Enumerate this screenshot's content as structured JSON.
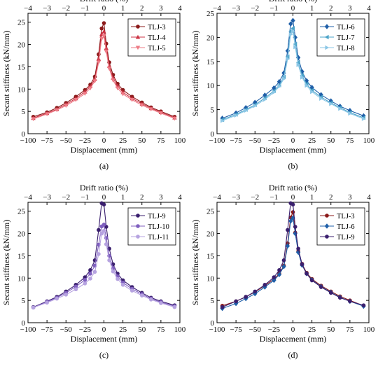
{
  "figure": {
    "panels": [
      "(a)",
      "(b)",
      "(c)",
      "(d)"
    ]
  },
  "chart_data": [
    {
      "type": "line",
      "panel_label": "(a)",
      "xlabel": "Displacement (mm)",
      "ylabel": "Secant stiffness (kN/mm)",
      "x2label": "Drift ratio (%)",
      "xlim": [
        -100,
        100
      ],
      "ylim": [
        0,
        27
      ],
      "x2lim": [
        -4,
        4
      ],
      "xticks": [
        "−100",
        "−75",
        "−50",
        "−25",
        "0",
        "25",
        "50",
        "75",
        "100"
      ],
      "yticks": [
        "0",
        "5",
        "10",
        "15",
        "20",
        "25"
      ],
      "x2ticks": [
        "−4",
        "−3",
        "−2",
        "−1",
        "0",
        "1",
        "2",
        "3",
        "4"
      ],
      "legend_position": "top-right",
      "series": [
        {
          "name": "TLJ-3",
          "color": "#8b1a1a",
          "marker": "circle",
          "x": [
            -93,
            -75,
            -62,
            -50,
            -37,
            -25,
            -18,
            -12,
            -7,
            -3,
            0,
            3,
            7,
            12,
            18,
            25,
            37,
            50,
            62,
            75,
            93
          ],
          "y": [
            3.8,
            4.8,
            5.8,
            6.9,
            8.3,
            9.8,
            11.0,
            12.8,
            17.8,
            23.6,
            24.8,
            20.2,
            16.0,
            13.2,
            11.2,
            9.8,
            8.3,
            7.0,
            5.9,
            5.0,
            3.8
          ]
        },
        {
          "name": "TLJ-4",
          "color": "#cc3344",
          "marker": "triangle-up",
          "x": [
            -93,
            -75,
            -62,
            -50,
            -37,
            -25,
            -18,
            -12,
            -7,
            -3,
            0,
            3,
            7,
            12,
            18,
            25,
            37,
            50,
            62,
            75,
            93
          ],
          "y": [
            3.5,
            4.6,
            5.5,
            6.6,
            7.9,
            9.4,
            10.6,
            12.2,
            16.8,
            22.3,
            22.9,
            19.2,
            15.2,
            12.5,
            10.7,
            9.3,
            7.9,
            6.7,
            5.7,
            4.8,
            3.6
          ]
        },
        {
          "name": "TLJ-5",
          "color": "#ee7b86",
          "marker": "triangle-down",
          "x": [
            -93,
            -75,
            -62,
            -50,
            -37,
            -25,
            -18,
            -12,
            -7,
            -3,
            0,
            3,
            7,
            12,
            18,
            25,
            37,
            50,
            62,
            75,
            93
          ],
          "y": [
            3.3,
            4.4,
            5.3,
            6.3,
            7.6,
            9.0,
            10.2,
            11.8,
            16.0,
            21.3,
            21.9,
            18.4,
            14.6,
            12.0,
            10.2,
            8.9,
            7.6,
            6.4,
            5.5,
            4.6,
            3.4
          ]
        }
      ]
    },
    {
      "type": "line",
      "panel_label": "(b)",
      "xlabel": "Displacement (mm)",
      "ylabel": "Secant stiffness (kN/mm)",
      "x2label": "Drift ratio (%)",
      "xlim": [
        -100,
        100
      ],
      "ylim": [
        0,
        25
      ],
      "x2lim": [
        -4,
        4
      ],
      "xticks": [
        "−100",
        "−75",
        "−50",
        "−25",
        "0",
        "25",
        "50",
        "75",
        "100"
      ],
      "yticks": [
        "0",
        "5",
        "10",
        "15",
        "20",
        "25"
      ],
      "x2ticks": [
        "−4",
        "−3",
        "−2",
        "−1",
        "0",
        "1",
        "2",
        "3",
        "4"
      ],
      "legend_position": "top-right",
      "series": [
        {
          "name": "TLJ-6",
          "color": "#1f5fa8",
          "marker": "diamond",
          "x": [
            -93,
            -75,
            -62,
            -50,
            -37,
            -25,
            -18,
            -12,
            -7,
            -3,
            0,
            3,
            7,
            12,
            18,
            25,
            37,
            50,
            62,
            75,
            93
          ],
          "y": [
            3.2,
            4.3,
            5.4,
            6.5,
            8.0,
            9.5,
            10.8,
            12.6,
            17.2,
            22.8,
            23.5,
            20.0,
            15.8,
            12.9,
            11.0,
            9.6,
            8.1,
            6.8,
            5.7,
            4.8,
            3.7
          ]
        },
        {
          "name": "TLJ-7",
          "color": "#4aa3c8",
          "marker": "triangle-left",
          "x": [
            -93,
            -75,
            -62,
            -50,
            -37,
            -25,
            -18,
            -12,
            -7,
            -3,
            0,
            3,
            7,
            12,
            18,
            25,
            37,
            50,
            62,
            75,
            93
          ],
          "y": [
            2.9,
            4.0,
            5.0,
            6.0,
            7.4,
            8.9,
            10.1,
            11.8,
            16.0,
            21.3,
            21.9,
            18.6,
            14.8,
            12.1,
            10.3,
            9.0,
            7.6,
            6.4,
            5.4,
            4.4,
            3.3
          ]
        },
        {
          "name": "TLJ-8",
          "color": "#8cc7e6",
          "marker": "triangle-right",
          "x": [
            -93,
            -75,
            -62,
            -50,
            -37,
            -25,
            -18,
            -12,
            -7,
            -3,
            0,
            3,
            7,
            12,
            18,
            25,
            37,
            50,
            62,
            75,
            93
          ],
          "y": [
            2.7,
            3.8,
            4.8,
            5.8,
            7.1,
            8.6,
            9.8,
            11.4,
            15.5,
            20.6,
            21.3,
            18.0,
            14.3,
            11.7,
            10.0,
            8.7,
            7.3,
            6.2,
            5.2,
            4.2,
            3.1
          ]
        }
      ]
    },
    {
      "type": "line",
      "panel_label": "(c)",
      "xlabel": "Displacement (mm)",
      "ylabel": "Secant stiffness (kN/mm)",
      "x2label": "Drift ratio (%)",
      "xlim": [
        -100,
        100
      ],
      "ylim": [
        0,
        27
      ],
      "x2lim": [
        -4,
        4
      ],
      "xticks": [
        "−100",
        "−75",
        "−50",
        "−25",
        "0",
        "25",
        "50",
        "75",
        "100"
      ],
      "yticks": [
        "0",
        "5",
        "10",
        "15",
        "20",
        "25"
      ],
      "x2ticks": [
        "−4",
        "−3",
        "−2",
        "−1",
        "0",
        "1",
        "2",
        "3",
        "4"
      ],
      "legend_position": "top-right",
      "series": [
        {
          "name": "TLJ-9",
          "color": "#3a1f6e",
          "marker": "circle",
          "x": [
            -93,
            -75,
            -62,
            -50,
            -37,
            -25,
            -18,
            -12,
            -7,
            -3,
            0,
            3,
            7,
            12,
            18,
            25,
            37,
            50,
            62,
            75,
            93
          ],
          "y": [
            3.5,
            4.8,
            5.8,
            7.0,
            8.5,
            10.2,
            11.8,
            14.0,
            20.8,
            26.8,
            26.5,
            21.5,
            16.6,
            13.1,
            11.0,
            9.5,
            8.0,
            6.7,
            5.6,
            4.8,
            3.9
          ]
        },
        {
          "name": "TLJ-10",
          "color": "#7f5fbf",
          "marker": "circle",
          "x": [
            -93,
            -75,
            -62,
            -50,
            -37,
            -25,
            -18,
            -12,
            -7,
            -3,
            0,
            3,
            7,
            12,
            18,
            25,
            37,
            50,
            62,
            75,
            93
          ],
          "y": [
            3.4,
            4.7,
            5.6,
            6.7,
            8.1,
            9.6,
            11.0,
            12.8,
            17.5,
            21.6,
            22.0,
            19.0,
            15.0,
            12.2,
            10.4,
            9.0,
            7.6,
            6.4,
            5.4,
            4.6,
            3.7
          ]
        },
        {
          "name": "TLJ-11",
          "color": "#b6a3e0",
          "marker": "circle",
          "x": [
            -93,
            -75,
            -62,
            -50,
            -37,
            -25,
            -18,
            -12,
            -7,
            -3,
            0,
            3,
            7,
            12,
            18,
            25,
            37,
            50,
            62,
            75,
            93
          ],
          "y": [
            3.4,
            4.5,
            5.4,
            6.3,
            7.5,
            8.8,
            9.9,
            11.4,
            15.4,
            20.0,
            20.6,
            17.6,
            14.0,
            11.5,
            9.8,
            8.5,
            7.2,
            6.1,
            5.2,
            4.4,
            3.5
          ]
        }
      ]
    },
    {
      "type": "line",
      "panel_label": "(d)",
      "xlabel": "Displacement (mm)",
      "ylabel": "Secant stiffness (kN/mm)",
      "x2label": "Drift ratio (%)",
      "xlim": [
        -100,
        100
      ],
      "ylim": [
        0,
        27
      ],
      "x2lim": [
        -4,
        4
      ],
      "xticks": [
        "−100",
        "−75",
        "−50",
        "−25",
        "0",
        "25",
        "50",
        "75",
        "100"
      ],
      "yticks": [
        "0",
        "5",
        "10",
        "15",
        "20",
        "25"
      ],
      "x2ticks": [
        "−4",
        "−3",
        "−2",
        "−1",
        "0",
        "1",
        "2",
        "3",
        "4"
      ],
      "legend_position": "top-right",
      "series": [
        {
          "name": "TLJ-3",
          "color": "#8b1a1a",
          "marker": "circle",
          "x": [
            -93,
            -75,
            -62,
            -50,
            -37,
            -25,
            -18,
            -12,
            -7,
            -3,
            0,
            3,
            7,
            12,
            18,
            25,
            37,
            50,
            62,
            75,
            93
          ],
          "y": [
            3.8,
            4.8,
            5.8,
            6.9,
            8.3,
            9.8,
            11.0,
            12.8,
            17.8,
            23.6,
            24.8,
            20.2,
            16.0,
            13.2,
            11.2,
            9.8,
            8.3,
            7.0,
            5.9,
            5.0,
            3.8
          ]
        },
        {
          "name": "TLJ-6",
          "color": "#1f5fa8",
          "marker": "diamond",
          "x": [
            -93,
            -75,
            -62,
            -50,
            -37,
            -25,
            -18,
            -12,
            -7,
            -3,
            0,
            3,
            7,
            12,
            18,
            25,
            37,
            50,
            62,
            75,
            93
          ],
          "y": [
            3.2,
            4.3,
            5.4,
            6.5,
            8.0,
            9.5,
            10.8,
            12.6,
            17.2,
            22.8,
            23.5,
            20.0,
            15.8,
            12.9,
            11.0,
            9.6,
            8.1,
            6.8,
            5.7,
            4.8,
            3.7
          ]
        },
        {
          "name": "TLJ-9",
          "color": "#3a1f6e",
          "marker": "circle",
          "x": [
            -93,
            -75,
            -62,
            -50,
            -37,
            -25,
            -18,
            -12,
            -7,
            -3,
            0,
            3,
            7,
            12,
            18,
            25,
            37,
            50,
            62,
            75,
            93
          ],
          "y": [
            3.5,
            4.8,
            5.8,
            7.0,
            8.5,
            10.2,
            11.8,
            14.0,
            20.8,
            26.8,
            26.5,
            21.5,
            16.6,
            13.1,
            11.0,
            9.5,
            8.0,
            6.7,
            5.6,
            4.8,
            3.9
          ]
        }
      ]
    }
  ]
}
